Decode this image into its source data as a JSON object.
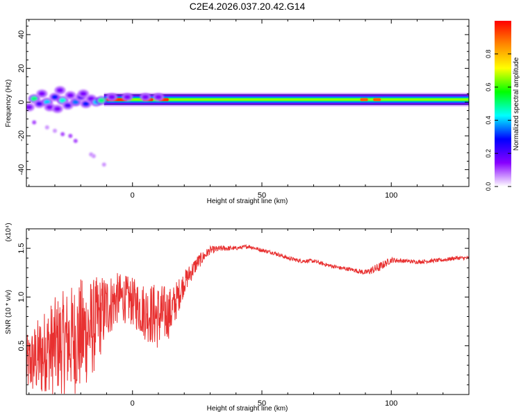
{
  "title": "C2E4.2026.037.20.42.G14",
  "chart_data": [
    {
      "type": "heatmap",
      "title": "C2E4.2026.037.20.42.G14",
      "xlabel": "Height of straight line (km)",
      "ylabel": "Frequency (Hz)",
      "xlim": [
        -41,
        130
      ],
      "ylim": [
        -50,
        49
      ],
      "x_ticks": [
        0,
        50,
        100
      ],
      "y_ticks": [
        -40,
        -20,
        0,
        20,
        40
      ],
      "colorbar": {
        "label": "Normalized spectral amplitude",
        "range": [
          0,
          1
        ],
        "ticks": [
          "0.0",
          "0.2",
          "0.4",
          "0.6",
          "0.8"
        ],
        "colors": [
          "#ffffff",
          "#8800ff",
          "#0000ff",
          "#00ffff",
          "#00ff00",
          "#ffff00",
          "#ff8800",
          "#ff0000"
        ]
      },
      "band": {
        "x_start": -11,
        "x_end": 130,
        "center_hz": 1.5,
        "inner_halfwidth_hz": 1.5,
        "outer_halfwidth_hz": 4
      },
      "blobs": [
        {
          "x": -38,
          "y": 2,
          "v": 0.5
        },
        {
          "x": -36,
          "y": -1,
          "v": 0.2
        },
        {
          "x": -35,
          "y": 5,
          "v": 0.15
        },
        {
          "x": -33,
          "y": 0,
          "v": 0.4
        },
        {
          "x": -32,
          "y": -3,
          "v": 0.15
        },
        {
          "x": -30,
          "y": 3,
          "v": 0.3
        },
        {
          "x": -28,
          "y": 7,
          "v": 0.15
        },
        {
          "x": -27,
          "y": 1,
          "v": 0.45
        },
        {
          "x": -25,
          "y": -2,
          "v": 0.2
        },
        {
          "x": -24,
          "y": 4,
          "v": 0.15
        },
        {
          "x": -22,
          "y": 0,
          "v": 0.35
        },
        {
          "x": -20,
          "y": 3,
          "v": 0.2
        },
        {
          "x": -18,
          "y": -1,
          "v": 0.3
        },
        {
          "x": -16,
          "y": 2,
          "v": 0.15
        },
        {
          "x": -14,
          "y": 0,
          "v": 0.4
        },
        {
          "x": -40,
          "y": -3,
          "v": 0.15
        },
        {
          "x": -29,
          "y": -4,
          "v": 0.15
        },
        {
          "x": -19,
          "y": 5,
          "v": 0.15
        },
        {
          "x": -12,
          "y": 1,
          "v": 0.5
        },
        {
          "x": -8,
          "y": 3,
          "v": 0.15
        },
        {
          "x": -2,
          "y": 3,
          "v": 0.15
        },
        {
          "x": 5,
          "y": 3,
          "v": 0.15
        },
        {
          "x": 10,
          "y": 3,
          "v": 0.15
        }
      ],
      "scatter_below": [
        {
          "x": -38,
          "y": -12,
          "v": 0.1
        },
        {
          "x": -33,
          "y": -15,
          "v": 0.05
        },
        {
          "x": -30,
          "y": -17,
          "v": 0.05
        },
        {
          "x": -27,
          "y": -19,
          "v": 0.1
        },
        {
          "x": -24,
          "y": -20,
          "v": 0.1
        },
        {
          "x": -22,
          "y": -23,
          "v": 0.1
        },
        {
          "x": -16,
          "y": -31,
          "v": 0.05
        },
        {
          "x": -15,
          "y": -32,
          "v": 0.05
        },
        {
          "x": -11,
          "y": -37,
          "v": 0.02
        }
      ],
      "hot_segments": [
        {
          "x0": -10,
          "x1": -2,
          "v": 0.95
        },
        {
          "x0": 4,
          "x1": 8,
          "v": 0.95
        },
        {
          "x0": 10,
          "x1": 14,
          "v": 0.95
        },
        {
          "x0": 88,
          "x1": 91,
          "v": 0.9
        },
        {
          "x0": 93,
          "x1": 96,
          "v": 0.9
        }
      ]
    },
    {
      "type": "line",
      "xlabel": "Height of straight line (km)",
      "ylabel": "SNR (10 * v/v)",
      "y_multiplier": "(x10⁴)",
      "xlim": [
        -41,
        130
      ],
      "ylim": [
        0,
        1.7
      ],
      "x_ticks": [
        0,
        50,
        100
      ],
      "y_ticks": [
        "0.5",
        "1.0",
        "1.5"
      ],
      "color": "#e83030",
      "series": [
        {
          "x": [
            -41,
            -35,
            -30,
            -25,
            -20,
            -15,
            -10,
            -5,
            0,
            5,
            10,
            15,
            20,
            25,
            30,
            35,
            40,
            45,
            50,
            55,
            60,
            65,
            70,
            75,
            80,
            85,
            90,
            95,
            100,
            105,
            110,
            115,
            120,
            125,
            130
          ],
          "y": [
            0.3,
            0.4,
            0.5,
            0.55,
            0.6,
            0.7,
            0.9,
            1.0,
            0.95,
            0.85,
            0.8,
            0.85,
            1.15,
            1.35,
            1.48,
            1.5,
            1.5,
            1.52,
            1.48,
            1.45,
            1.4,
            1.37,
            1.37,
            1.33,
            1.3,
            1.28,
            1.25,
            1.3,
            1.38,
            1.37,
            1.36,
            1.37,
            1.38,
            1.4,
            1.4
          ],
          "amplitude": [
            0.3,
            0.45,
            0.5,
            0.55,
            0.6,
            0.5,
            0.35,
            0.25,
            0.25,
            0.3,
            0.35,
            0.25,
            0.12,
            0.08,
            0.04,
            0.03,
            0.02,
            0.02,
            0.02,
            0.02,
            0.02,
            0.02,
            0.02,
            0.02,
            0.02,
            0.02,
            0.03,
            0.05,
            0.03,
            0.02,
            0.02,
            0.02,
            0.02,
            0.02,
            0.02
          ]
        }
      ]
    }
  ]
}
